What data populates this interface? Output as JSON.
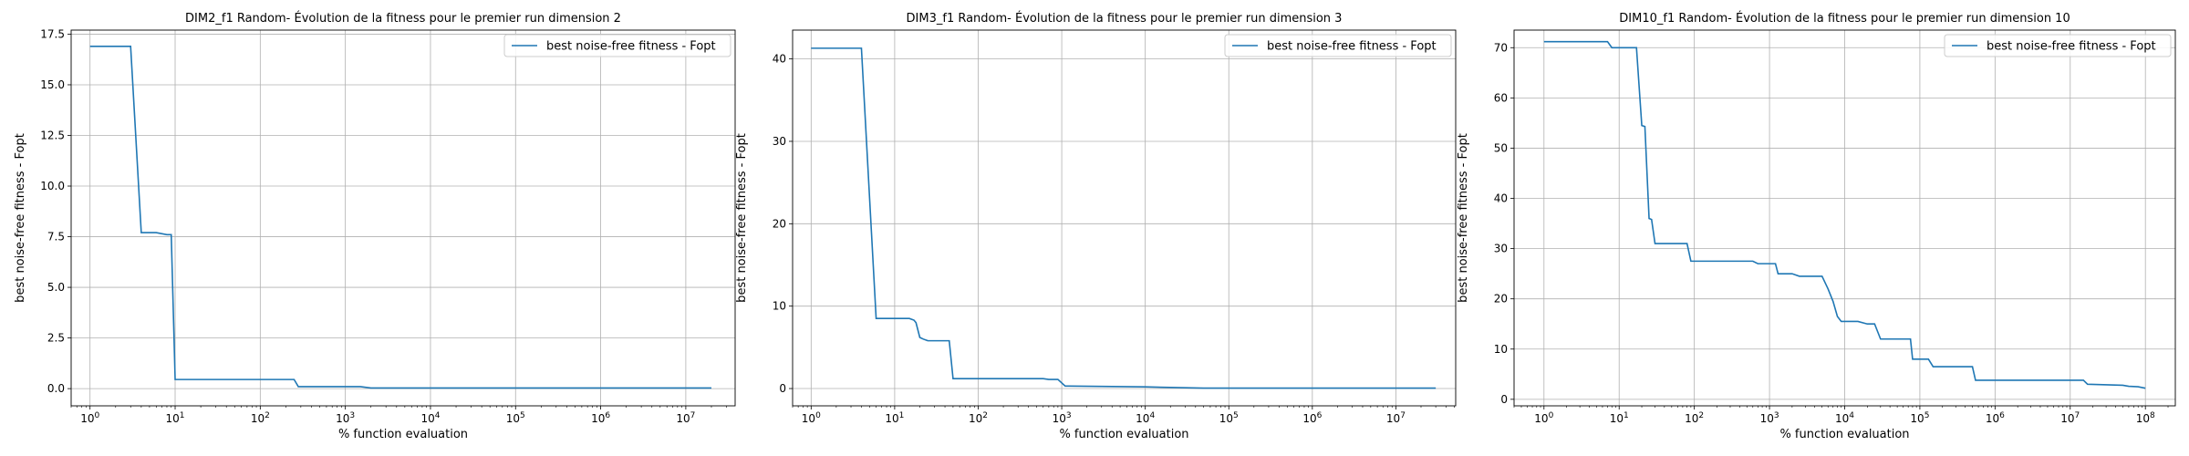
{
  "chart_data": [
    {
      "type": "line",
      "title": "DIM2_f1 Random- Évolution de la fitness pour le premier run dimension 2",
      "xlabel": "% function evaluation",
      "ylabel": "best noise-free fitness - Fopt",
      "xscale": "log",
      "xlim": [
        0.6,
        38000000
      ],
      "ylim": [
        -0.85,
        17.7
      ],
      "xticks": [
        {
          "value": 1,
          "exp": "0"
        },
        {
          "value": 10,
          "exp": "1"
        },
        {
          "value": 100,
          "exp": "2"
        },
        {
          "value": 1000,
          "exp": "3"
        },
        {
          "value": 10000,
          "exp": "4"
        },
        {
          "value": 100000,
          "exp": "5"
        },
        {
          "value": 1000000,
          "exp": "6"
        },
        {
          "value": 10000000,
          "exp": "7"
        }
      ],
      "yticks": [
        {
          "value": 0,
          "label": "0.0"
        },
        {
          "value": 2.5,
          "label": "2.5"
        },
        {
          "value": 5,
          "label": "5.0"
        },
        {
          "value": 7.5,
          "label": "7.5"
        },
        {
          "value": 10,
          "label": "10.0"
        },
        {
          "value": 12.5,
          "label": "12.5"
        },
        {
          "value": 15,
          "label": "15.0"
        },
        {
          "value": 17.5,
          "label": "17.5"
        }
      ],
      "grid": true,
      "legend_position": "top-right",
      "series": [
        {
          "name": "best noise-free fitness - Fopt",
          "color": "#1f77b4",
          "x": [
            1,
            3,
            4,
            6,
            8,
            9,
            10,
            250,
            280,
            1500,
            2000,
            20000000
          ],
          "y": [
            16.9,
            16.9,
            7.7,
            7.7,
            7.6,
            7.6,
            0.45,
            0.45,
            0.1,
            0.1,
            0.03,
            0.03
          ]
        }
      ]
    },
    {
      "type": "line",
      "title": "DIM3_f1 Random- Évolution de la fitness pour le premier run dimension 3",
      "xlabel": "% function evaluation",
      "ylabel": "best noise-free fitness - Fopt",
      "xscale": "log",
      "xlim": [
        0.6,
        52000000
      ],
      "ylim": [
        -2.1,
        43.5
      ],
      "xticks": [
        {
          "value": 1,
          "exp": "0"
        },
        {
          "value": 10,
          "exp": "1"
        },
        {
          "value": 100,
          "exp": "2"
        },
        {
          "value": 1000,
          "exp": "3"
        },
        {
          "value": 10000,
          "exp": "4"
        },
        {
          "value": 100000,
          "exp": "5"
        },
        {
          "value": 1000000,
          "exp": "6"
        },
        {
          "value": 10000000,
          "exp": "7"
        }
      ],
      "yticks": [
        {
          "value": 0,
          "label": "0"
        },
        {
          "value": 10,
          "label": "10"
        },
        {
          "value": 20,
          "label": "20"
        },
        {
          "value": 30,
          "label": "30"
        },
        {
          "value": 40,
          "label": "40"
        }
      ],
      "grid": true,
      "legend_position": "top-right",
      "series": [
        {
          "name": "best noise-free fitness - Fopt",
          "color": "#1f77b4",
          "x": [
            1,
            4,
            6,
            15,
            17,
            18,
            20,
            22,
            25,
            30,
            45,
            50,
            600,
            700,
            900,
            1100,
            1200,
            10000,
            50000,
            30000000
          ],
          "y": [
            41.3,
            41.3,
            8.5,
            8.5,
            8.3,
            8.0,
            6.2,
            6.0,
            5.8,
            5.8,
            5.8,
            1.2,
            1.2,
            1.1,
            1.1,
            0.3,
            0.3,
            0.2,
            0.05,
            0.05
          ]
        }
      ]
    },
    {
      "type": "line",
      "title": "DIM10_f1 Random- Évolution de la fitness pour le premier run dimension 10",
      "xlabel": "% function evaluation",
      "ylabel": "best noise-free fitness - Fopt",
      "xscale": "log",
      "xlim": [
        0.4,
        250000000
      ],
      "ylim": [
        -1.3,
        73.5
      ],
      "xticks": [
        {
          "value": 1,
          "exp": "0"
        },
        {
          "value": 10,
          "exp": "1"
        },
        {
          "value": 100,
          "exp": "2"
        },
        {
          "value": 1000,
          "exp": "3"
        },
        {
          "value": 10000,
          "exp": "4"
        },
        {
          "value": 100000,
          "exp": "5"
        },
        {
          "value": 1000000,
          "exp": "6"
        },
        {
          "value": 10000000,
          "exp": "7"
        },
        {
          "value": 100000000,
          "exp": "8"
        }
      ],
      "yticks": [
        {
          "value": 0,
          "label": "0"
        },
        {
          "value": 10,
          "label": "10"
        },
        {
          "value": 20,
          "label": "20"
        },
        {
          "value": 30,
          "label": "30"
        },
        {
          "value": 40,
          "label": "40"
        },
        {
          "value": 50,
          "label": "50"
        },
        {
          "value": 60,
          "label": "60"
        },
        {
          "value": 70,
          "label": "70"
        }
      ],
      "grid": true,
      "legend_position": "top-right",
      "series": [
        {
          "name": "best noise-free fitness - Fopt",
          "color": "#1f77b4",
          "x": [
            1,
            7,
            8,
            17,
            20,
            22,
            25,
            27,
            30,
            80,
            90,
            600,
            700,
            1200,
            1300,
            2000,
            2500,
            5000,
            6000,
            7000,
            8000,
            9000,
            15000,
            20000,
            25000,
            30000,
            75000,
            80000,
            130000,
            150000,
            500000,
            550000,
            15000000,
            17000000,
            50000000,
            60000000,
            80000000,
            100000000
          ],
          "y": [
            71.2,
            71.2,
            70.0,
            70.0,
            54.5,
            54.3,
            36.0,
            35.8,
            31.0,
            31.0,
            27.5,
            27.5,
            27.0,
            27.0,
            25.0,
            25.0,
            24.5,
            24.5,
            22.0,
            19.5,
            16.5,
            15.5,
            15.5,
            15.0,
            15.0,
            12.0,
            12.0,
            8.0,
            8.0,
            6.5,
            6.5,
            3.8,
            3.8,
            3.0,
            2.8,
            2.6,
            2.5,
            2.2
          ]
        }
      ]
    }
  ]
}
